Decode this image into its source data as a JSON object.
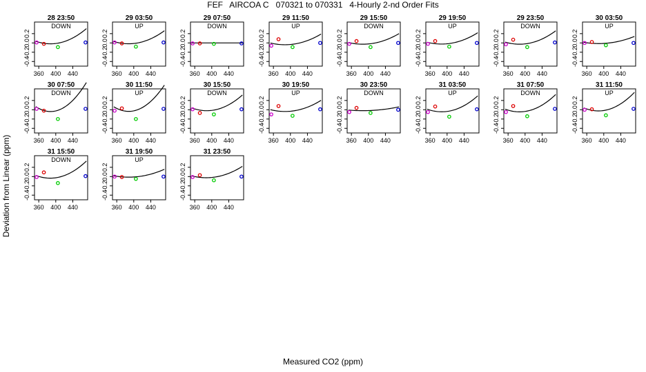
{
  "title": "FEF   AIRCOA C   070321 to 070331   4-Hourly 2-nd Order Fits",
  "xlabel": "Measured CO2 (ppm)",
  "ylabel": "Deviation from Linear (ppm)",
  "colors": {
    "p1": "#cc00cc",
    "p2": "#dd0000",
    "p3": "#00cc00",
    "p4": "#0000cc",
    "fit": "#000000"
  },
  "chart_data": {
    "type": "scatter",
    "xlim": [
      350,
      475
    ],
    "ylim": [
      -0.5,
      0.45
    ],
    "xticks": [
      360,
      400,
      440
    ],
    "yticks": [
      -0.4,
      -0.2,
      0.0,
      0.2
    ],
    "panels": [
      {
        "title": "28 23:50",
        "label": "DOWN",
        "x": [
          355,
          372,
          405,
          470
        ],
        "y": [
          0.01,
          -0.02,
          -0.09,
          0.01
        ],
        "fit": [
          0.0297,
          -0.002988,
          4.585e-05
        ]
      },
      {
        "title": "29 03:50",
        "label": "UP",
        "x": [
          355,
          372,
          405,
          470
        ],
        "y": [
          0.01,
          -0.01,
          -0.08,
          0.01
        ],
        "fit": [
          0.0249,
          -0.002606,
          3.962e-05
        ]
      },
      {
        "title": "29 07:50",
        "label": "DOWN",
        "x": [
          355,
          372,
          405,
          470
        ],
        "y": [
          -0.01,
          -0.01,
          -0.02,
          -0.01
        ],
        "fit": [
          0.0,
          0.0,
          0.0
        ]
      },
      {
        "title": "29 11:50",
        "label": "UP",
        "x": [
          355,
          372,
          405,
          470
        ],
        "y": [
          -0.06,
          0.08,
          -0.09,
          0.0
        ],
        "fit": [
          -0.0059,
          -0.002049,
          3.189e-05
        ]
      },
      {
        "title": "29 15:50",
        "label": "DOWN",
        "x": [
          355,
          372,
          405,
          470
        ],
        "y": [
          -0.02,
          0.04,
          -0.09,
          0.0
        ],
        "fit": [
          0.0046,
          -0.001996,
          3.138e-05
        ]
      },
      {
        "title": "29 19:50",
        "label": "UP",
        "x": [
          355,
          372,
          405,
          470
        ],
        "y": [
          -0.02,
          0.04,
          -0.08,
          0.0
        ],
        "fit": [
          0.0101,
          -0.002143,
          3.359e-05
        ]
      },
      {
        "title": "29 23:50",
        "label": "DOWN",
        "x": [
          355,
          372,
          405,
          470
        ],
        "y": [
          -0.03,
          0.07,
          -0.09,
          0.01
        ],
        "fit": [
          0.0133,
          -0.002538,
          3.976e-05
        ]
      },
      {
        "title": "30 03:50",
        "label": "UP",
        "x": [
          355,
          372,
          405,
          470
        ],
        "y": [
          0.0,
          0.02,
          -0.05,
          0.0
        ],
        "fit": [
          0.0103,
          -0.001452,
          2.185e-05
        ]
      },
      {
        "title": "30 07:50",
        "label": "DOWN",
        "x": [
          355,
          372,
          405,
          470
        ],
        "y": [
          0.02,
          -0.02,
          -0.2,
          0.02
        ],
        "fit": [
          0.0563,
          -0.005776,
          8.811e-05
        ]
      },
      {
        "title": "30 11:50",
        "label": "UP",
        "x": [
          355,
          372,
          405,
          470
        ],
        "y": [
          -0.02,
          0.03,
          -0.2,
          0.02
        ],
        "fit": [
          0.0533,
          -0.005318,
          8.023e-05
        ]
      },
      {
        "title": "30 15:50",
        "label": "DOWN",
        "x": [
          355,
          372,
          405,
          470
        ],
        "y": [
          0.01,
          -0.07,
          -0.1,
          0.01
        ],
        "fit": [
          0.0331,
          -0.003211,
          4.815e-05
        ]
      },
      {
        "title": "30 19:50",
        "label": "UP",
        "x": [
          355,
          372,
          405,
          470
        ],
        "y": [
          -0.1,
          0.08,
          -0.13,
          0.01
        ],
        "fit": [
          -0.0026,
          -0.002155,
          3.338e-05
        ]
      },
      {
        "title": "30 23:50",
        "label": "DOWN",
        "x": [
          355,
          372,
          405,
          470
        ],
        "y": [
          -0.05,
          0.04,
          -0.07,
          0.0
        ],
        "fit": [
          -0.0085,
          -0.000722,
          1.138e-05
        ]
      },
      {
        "title": "31 03:50",
        "label": "UP",
        "x": [
          355,
          372,
          405,
          470
        ],
        "y": [
          -0.05,
          0.07,
          -0.15,
          0.01
        ],
        "fit": [
          0.0061,
          -0.003086,
          4.776e-05
        ]
      },
      {
        "title": "31 07:50",
        "label": "DOWN",
        "x": [
          355,
          372,
          405,
          470
        ],
        "y": [
          -0.05,
          0.08,
          -0.14,
          0.02
        ],
        "fit": [
          0.0065,
          -0.003263,
          5.138e-05
        ]
      },
      {
        "title": "31 11:50",
        "label": "UP",
        "x": [
          355,
          372,
          405,
          470
        ],
        "y": [
          0.0,
          0.01,
          -0.12,
          0.02
        ],
        "fit": [
          0.0337,
          -0.003617,
          5.575e-05
        ]
      },
      {
        "title": "31 15:50",
        "label": "DOWN",
        "x": [
          355,
          372,
          405,
          470
        ],
        "y": [
          -0.01,
          0.09,
          -0.14,
          0.01
        ],
        "fit": [
          0.0178,
          -0.003249,
          5.086e-05
        ]
      },
      {
        "title": "31 19:50",
        "label": "UP",
        "x": [
          355,
          372,
          405,
          470
        ],
        "y": [
          0.0,
          -0.01,
          -0.05,
          0.0
        ],
        "fit": [
          0.014,
          -0.001601,
          2.412e-05
        ]
      },
      {
        "title": "31 23:50",
        "label": "",
        "x": [
          355,
          372,
          405,
          470
        ],
        "y": [
          -0.01,
          0.03,
          -0.08,
          0.0
        ],
        "fit": [
          0.0101,
          -0.002177,
          3.389e-05
        ]
      }
    ]
  }
}
